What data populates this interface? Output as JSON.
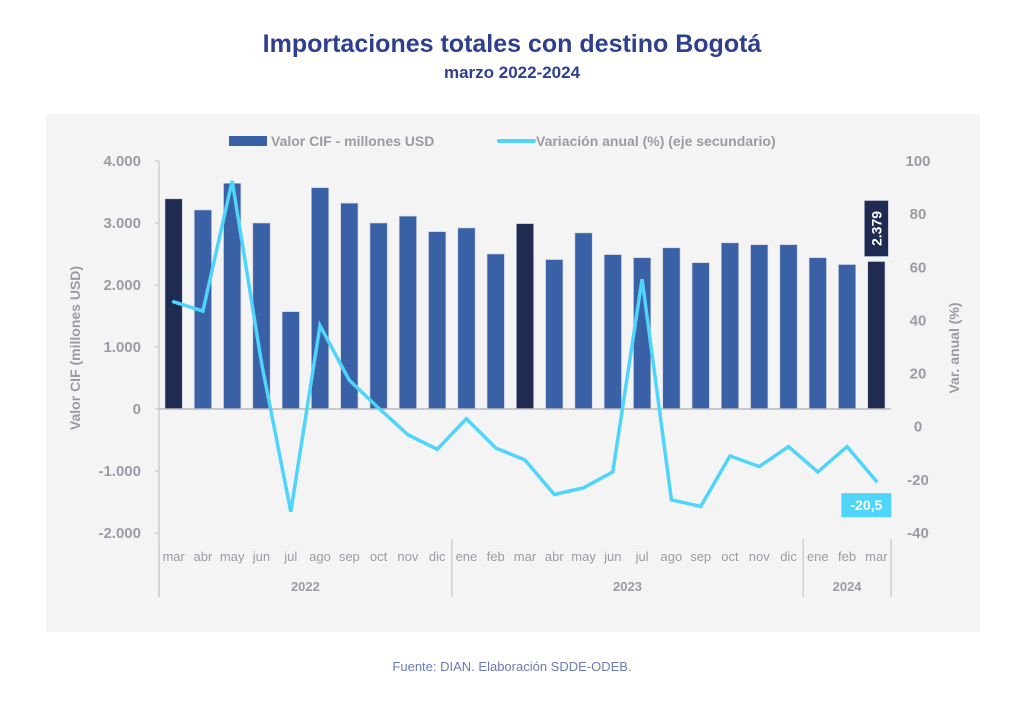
{
  "header": {
    "title": "Importaciones totales con destino Bogotá",
    "subtitle": "marzo 2022-2024"
  },
  "footer": {
    "source": "Fuente: DIAN. Elaboración SDDE-ODEB."
  },
  "colors": {
    "bar": "#3a61a6",
    "bar_highlight": "#202b52",
    "line": "#4fd4fb",
    "axis_text": "#9a9ca3",
    "title": "#2e3f8f"
  },
  "chart_data": {
    "type": "bar",
    "title": "Importaciones totales con destino Bogotá",
    "subtitle": "marzo 2022-2024",
    "categories": [
      "mar",
      "abr",
      "may",
      "jun",
      "jul",
      "ago",
      "sep",
      "oct",
      "nov",
      "dic",
      "ene",
      "feb",
      "mar",
      "abr",
      "may",
      "jun",
      "jul",
      "ago",
      "sep",
      "oct",
      "nov",
      "dic",
      "ene",
      "feb",
      "mar"
    ],
    "groups": [
      {
        "label": "2022",
        "start": 0,
        "end": 9
      },
      {
        "label": "2023",
        "start": 10,
        "end": 21
      },
      {
        "label": "2024",
        "start": 22,
        "end": 24
      }
    ],
    "highlight_indices": [
      0,
      12,
      24
    ],
    "series": [
      {
        "name": "Valor CIF - millones USD",
        "type": "bar",
        "axis": "left",
        "values": [
          3390,
          3210,
          3640,
          3000,
          1570,
          3570,
          3320,
          3000,
          3110,
          2860,
          2920,
          2500,
          2990,
          2410,
          2840,
          2490,
          2440,
          2600,
          2360,
          2680,
          2650,
          2650,
          2440,
          2330,
          2379
        ]
      },
      {
        "name": "Variación anual (%) (eje secundario)",
        "type": "line",
        "axis": "right",
        "values": [
          47,
          43.5,
          92.5,
          24,
          -32,
          38,
          17.5,
          7,
          -3,
          -8.5,
          3,
          -8,
          -12.5,
          -25.5,
          -23,
          -17,
          55.5,
          -27.5,
          -30,
          -11,
          -15,
          -7.5,
          -17,
          -7.5,
          -20.5
        ]
      }
    ],
    "data_labels": [
      {
        "series": 0,
        "index": 24,
        "text": "2.379"
      },
      {
        "series": 1,
        "index": 24,
        "text": "-20,5"
      }
    ],
    "ylabel": "Valor CIF (millones USD)",
    "ylabel_right": "Var. anual (%)",
    "xlabel": "",
    "ylim": [
      -2000,
      4000
    ],
    "yticks": [
      4000,
      3000,
      2000,
      1000,
      0,
      -1000,
      -2000
    ],
    "ytick_labels": [
      "4.000",
      "3.000",
      "2.000",
      "1.000",
      "0",
      "-1.000",
      "-2.000"
    ],
    "ylim_right": [
      -40,
      100
    ],
    "yticks_right": [
      100,
      80,
      60,
      40,
      20,
      0,
      -20,
      -40
    ],
    "ytick_labels_right": [
      "100",
      "80",
      "60",
      "40",
      "20",
      "0",
      "-20",
      "-40"
    ],
    "grid": false,
    "legend": "top-center"
  }
}
